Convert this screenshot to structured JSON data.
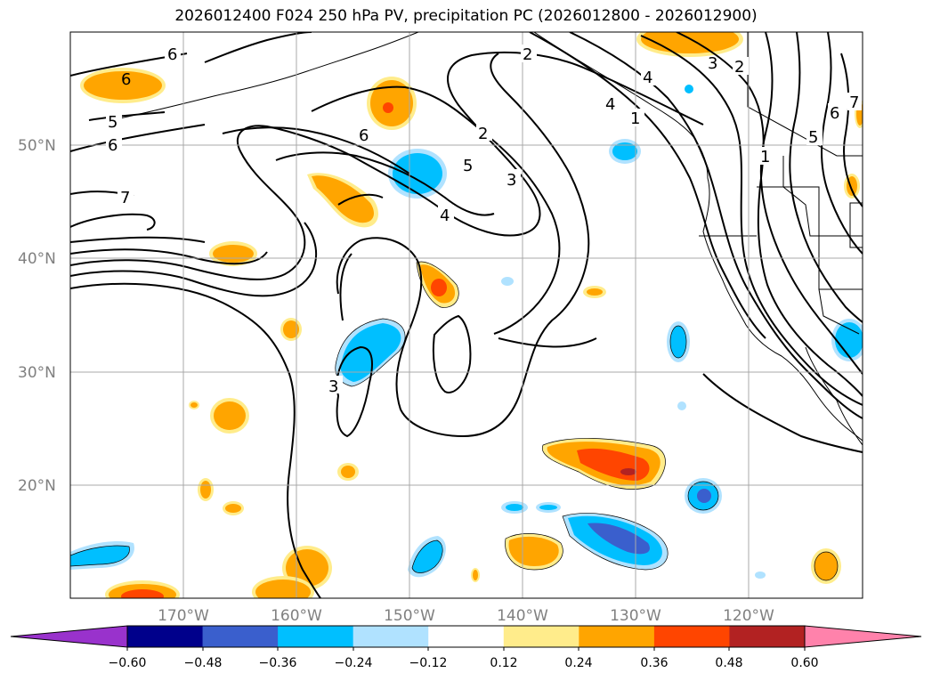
{
  "title": "2026012400 F024 250 hPa PV, precipitation PC (2026012800 - 2026012900)",
  "latitude_labels": [
    "50°N",
    "40°N",
    "30°N",
    "20°N"
  ],
  "longitude_labels": [
    "170°W",
    "160°W",
    "150°W",
    "140°W",
    "130°W",
    "120°W"
  ],
  "colorbar": {
    "tick_labels": [
      "−0.60",
      "−0.48",
      "−0.36",
      "−0.24",
      "−0.12",
      "0.12",
      "0.24",
      "0.36",
      "0.48",
      "0.60"
    ],
    "colors": [
      "#9932cc",
      "#00008b",
      "#3a5fcd",
      "#00bfff",
      "#b0e2ff",
      "#ffffff",
      "#ffec8b",
      "#ffa500",
      "#ff4500",
      "#b22222",
      "#ff82ab"
    ]
  },
  "pv_contour_labels": [
    "2",
    "3",
    "4",
    "5",
    "6",
    "7",
    "1"
  ],
  "colors": {
    "land_contour": "#000000",
    "gridline": "#a9a9a9",
    "axis_label": "#808080"
  }
}
